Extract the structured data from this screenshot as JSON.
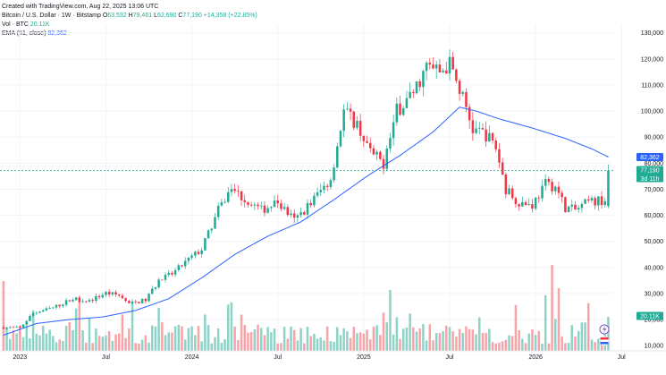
{
  "header": {
    "created": "Created with TradingView.com, Aug 22, 2025 13:06 UTC",
    "symbol": "Bitcoin / U.S. Dollar · 1W · Bitstamp",
    "open_label": "O",
    "open": "63,532",
    "high_label": "H",
    "high": "79,461",
    "low_label": "L",
    "low": "62,690",
    "close_label": "C",
    "close": "77,190",
    "change": "+14,358 (+22.85%)",
    "vol_label": "Vol · BTC",
    "vol_value": "20.11K",
    "ema_label": "EMA (51, close)",
    "ema_value": "82,362"
  },
  "colors": {
    "up": "#22ab94",
    "down": "#f23645",
    "vol_up": "#8dd3c7",
    "vol_down": "#f7a3a8",
    "ema": "#2962ff",
    "grid": "#f0f3fa"
  },
  "badges": {
    "ema": "82,362",
    "price": "77,190",
    "countdown": "3d 11h",
    "volume": "20.11K"
  },
  "chart_data": {
    "type": "candlestick",
    "y_ticks": [
      {
        "value": 10000,
        "label": "10,000"
      },
      {
        "value": 20000,
        "label": "20,000"
      },
      {
        "value": 30000,
        "label": "30,000"
      },
      {
        "value": 40000,
        "label": "40,000"
      },
      {
        "value": 50000,
        "label": "50,000"
      },
      {
        "value": 60000,
        "label": "60,000"
      },
      {
        "value": 70000,
        "label": "70,000"
      },
      {
        "value": 80000,
        "label": "80,000"
      },
      {
        "value": 90000,
        "label": "90,000"
      },
      {
        "value": 100000,
        "label": "100,000"
      },
      {
        "value": 110000,
        "label": "110,000"
      },
      {
        "value": 120000,
        "label": "120,000"
      },
      {
        "value": 130000,
        "label": "130,000"
      }
    ],
    "x_ticks": [
      {
        "index": 5,
        "label": "2023"
      },
      {
        "index": 31,
        "label": "Jul"
      },
      {
        "index": 57,
        "label": "2024"
      },
      {
        "index": 83,
        "label": "Jul"
      },
      {
        "index": 109,
        "label": "2025"
      },
      {
        "index": 135,
        "label": "Jul"
      },
      {
        "index": 161,
        "label": "2026"
      },
      {
        "index": 187,
        "label": "Jul"
      }
    ],
    "price_anchors": [
      [
        0,
        17000
      ],
      [
        5,
        16800
      ],
      [
        9,
        22500
      ],
      [
        15,
        24500
      ],
      [
        21,
        28000
      ],
      [
        26,
        27200
      ],
      [
        31,
        30200
      ],
      [
        35,
        29300
      ],
      [
        38,
        26000
      ],
      [
        43,
        27500
      ],
      [
        47,
        35000
      ],
      [
        51,
        37500
      ],
      [
        56,
        43000
      ],
      [
        60,
        47000
      ],
      [
        65,
        62000
      ],
      [
        69,
        70500
      ],
      [
        73,
        66000
      ],
      [
        78,
        62000
      ],
      [
        83,
        65000
      ],
      [
        88,
        58000
      ],
      [
        91,
        62000
      ],
      [
        95,
        68000
      ],
      [
        99,
        74000
      ],
      [
        103,
        100000
      ],
      [
        107,
        95000
      ],
      [
        111,
        84000
      ],
      [
        115,
        80000
      ],
      [
        119,
        100000
      ],
      [
        124,
        107000
      ],
      [
        128,
        117000
      ],
      [
        132,
        115000
      ],
      [
        135,
        118000
      ],
      [
        139,
        105000
      ],
      [
        142,
        93000
      ],
      [
        146,
        91000
      ],
      [
        149,
        86000
      ],
      [
        152,
        70000
      ],
      [
        156,
        65000
      ],
      [
        160,
        64000
      ],
      [
        164,
        72000
      ],
      [
        167,
        71000
      ],
      [
        170,
        63000
      ],
      [
        173,
        62000
      ],
      [
        177,
        65000
      ],
      [
        182,
        66000
      ],
      [
        183,
        77190
      ]
    ],
    "ema_anchors": [
      [
        0,
        14000
      ],
      [
        10,
        18500
      ],
      [
        20,
        20000
      ],
      [
        30,
        21000
      ],
      [
        40,
        23500
      ],
      [
        50,
        28000
      ],
      [
        60,
        36000
      ],
      [
        70,
        45000
      ],
      [
        80,
        52000
      ],
      [
        90,
        57500
      ],
      [
        100,
        66000
      ],
      [
        110,
        75000
      ],
      [
        120,
        83000
      ],
      [
        130,
        92000
      ],
      [
        138,
        101500
      ],
      [
        143,
        100000
      ],
      [
        150,
        97000
      ],
      [
        160,
        93500
      ],
      [
        170,
        89500
      ],
      [
        178,
        85500
      ],
      [
        183,
        82362
      ]
    ],
    "y_range": [
      8000,
      133000
    ]
  }
}
